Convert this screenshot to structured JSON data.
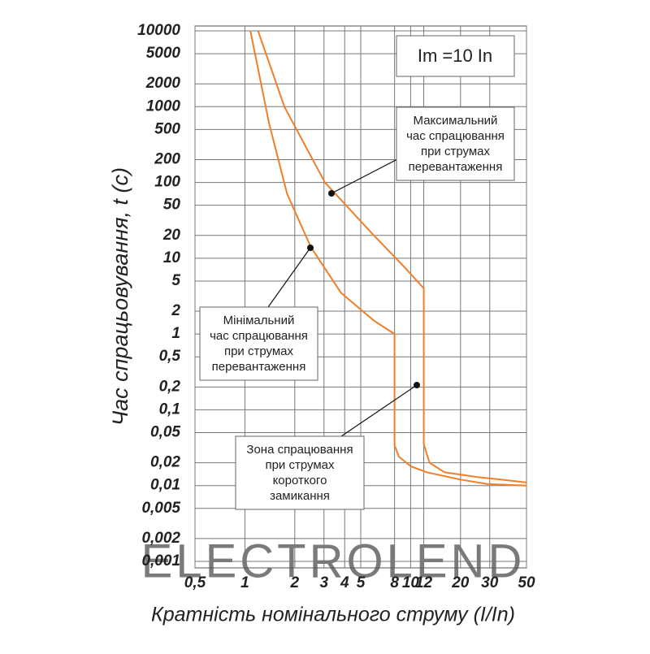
{
  "chart_data": {
    "type": "line",
    "xlabel": "Кратність номінального струму (I/In)",
    "ylabel": "Час спрацьовування, t (с)",
    "log_x": true,
    "log_y": true,
    "grid": true,
    "xlim": [
      0.5,
      50
    ],
    "ylim": [
      0.001,
      10000
    ],
    "xticks": [
      {
        "value": 0.5,
        "label": "0,5"
      },
      1,
      2,
      3,
      4,
      5,
      8,
      10,
      12,
      20,
      30,
      50
    ],
    "yticks": [
      10000,
      5000,
      2000,
      1000,
      500,
      200,
      100,
      50,
      20,
      10,
      5,
      2,
      1,
      {
        "value": 0.5,
        "label": "0,5"
      },
      {
        "value": 0.2,
        "label": "0,2"
      },
      {
        "value": 0.1,
        "label": "0,1"
      },
      {
        "value": 0.05,
        "label": "0,05"
      },
      {
        "value": 0.02,
        "label": "0,02"
      },
      {
        "value": 0.01,
        "label": "0,01"
      },
      {
        "value": 0.005,
        "label": "0,005"
      },
      {
        "value": 0.002,
        "label": "0,002"
      },
      {
        "value": 0.001,
        "label": "0,001"
      }
    ],
    "series": [
      {
        "color": "#f07f2a",
        "x": [
          1.08,
          1.4,
          1.8,
          2.5,
          3.8,
          6,
          8,
          8,
          8.5,
          10,
          12.5,
          20,
          29,
          50
        ],
        "values": [
          10000,
          600,
          70,
          14,
          3.5,
          1.5,
          1,
          0.034,
          0.024,
          0.018,
          0.015,
          0.012,
          0.0105,
          0.01
        ]
      },
      {
        "color": "#f07f2a",
        "x": [
          1.2,
          1.73,
          3.04,
          6,
          9.3,
          12,
          12,
          13,
          16,
          25,
          35,
          50
        ],
        "values": [
          10000,
          1000,
          100,
          20,
          7.4,
          4,
          0.035,
          0.02,
          0.015,
          0.013,
          0.012,
          0.011
        ]
      }
    ],
    "setting_label": "Im =10 In",
    "annotations": [
      {
        "lines": [
          "Максимальний",
          "час спрацювання",
          "при струмах",
          "перевантаження"
        ]
      },
      {
        "lines": [
          "Мінімальний",
          "час спрацювання",
          "при струмах",
          "перевантаження"
        ]
      },
      {
        "lines": [
          "Зона спрацювання",
          "при струмах",
          "короткого",
          "замикання"
        ]
      }
    ],
    "watermark": "ELECTROLEND"
  }
}
